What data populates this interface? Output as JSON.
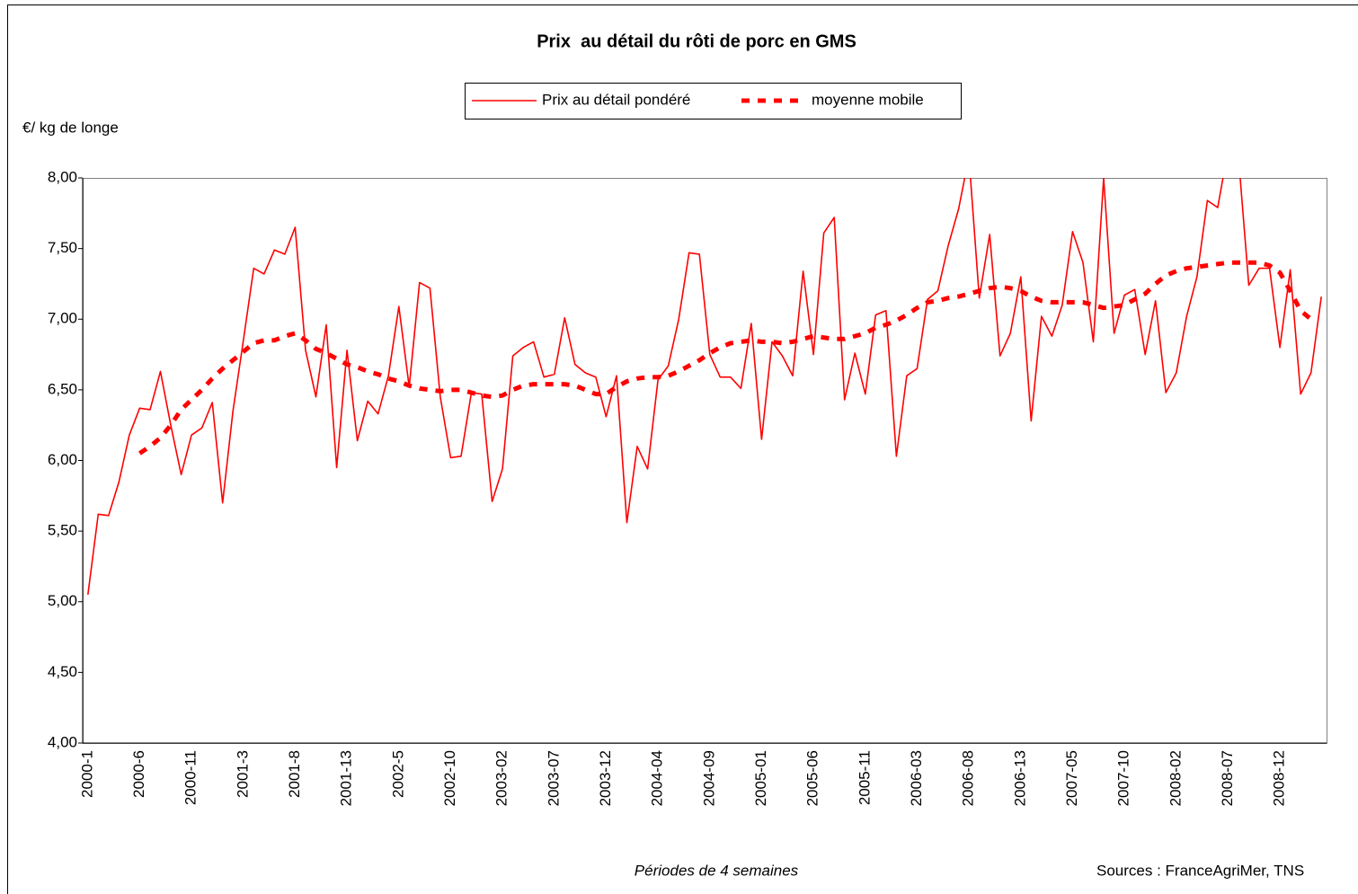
{
  "chart_data": {
    "type": "line",
    "title": "Prix  au détail du rôti de porc en GMS",
    "ylabel": "€/ kg de longe",
    "xlabel": "Périodes de 4 semaines",
    "source": "Sources : FranceAgriMer, TNS",
    "categories": [
      "2000-1",
      null,
      null,
      null,
      null,
      "2000-6",
      null,
      null,
      null,
      null,
      "2000-11",
      null,
      null,
      null,
      null,
      "2001-3",
      null,
      null,
      null,
      null,
      "2001-8",
      null,
      null,
      null,
      null,
      "2001-13",
      null,
      null,
      null,
      null,
      "2002-5",
      null,
      null,
      null,
      null,
      "2002-10",
      null,
      null,
      null,
      null,
      "2003-02",
      null,
      null,
      null,
      null,
      "2003-07",
      null,
      null,
      null,
      null,
      "2003-12",
      null,
      null,
      null,
      null,
      "2004-04",
      null,
      null,
      null,
      null,
      "2004-09",
      null,
      null,
      null,
      null,
      "2005-01",
      null,
      null,
      null,
      null,
      "2005-06",
      null,
      null,
      null,
      null,
      "2005-11",
      null,
      null,
      null,
      null,
      "2006-03",
      null,
      null,
      null,
      null,
      "2006-08",
      null,
      null,
      null,
      null,
      "2006-13",
      null,
      null,
      null,
      null,
      "2007-05",
      null,
      null,
      null,
      null,
      "2007-10",
      null,
      null,
      null,
      null,
      "2008-02",
      null,
      null,
      null,
      null,
      "2008-07",
      null,
      null,
      null,
      null,
      "2008-12",
      null,
      null,
      null,
      null
    ],
    "series": [
      {
        "name": "Prix au détail pondéré",
        "color": "#ff0000",
        "style": "solid",
        "values": [
          5.05,
          5.62,
          5.61,
          5.85,
          6.18,
          6.37,
          6.36,
          6.63,
          6.25,
          5.9,
          6.18,
          6.23,
          6.41,
          5.7,
          6.35,
          6.85,
          7.36,
          7.32,
          7.49,
          7.46,
          7.65,
          6.78,
          6.45,
          6.96,
          5.95,
          6.78,
          6.14,
          6.42,
          6.33,
          6.6,
          7.09,
          6.52,
          7.26,
          7.22,
          6.45,
          6.02,
          6.03,
          6.48,
          6.47,
          5.71,
          5.94,
          6.74,
          6.8,
          6.84,
          6.59,
          6.61,
          7.01,
          6.68,
          6.62,
          6.59,
          6.31,
          6.6,
          5.56,
          6.1,
          5.94,
          6.57,
          6.67,
          7.0,
          7.47,
          7.46,
          6.75,
          6.59,
          6.59,
          6.51,
          6.97,
          6.15,
          6.84,
          6.74,
          6.6,
          7.34,
          6.75,
          7.61,
          7.72,
          6.43,
          6.76,
          6.47,
          7.03,
          7.06,
          6.03,
          6.6,
          6.65,
          7.14,
          7.2,
          7.52,
          7.78,
          8.15,
          7.15,
          7.6,
          6.74,
          6.9,
          7.3,
          6.28,
          7.02,
          6.88,
          7.1,
          7.62,
          7.4,
          6.84,
          8.0,
          6.9,
          7.17,
          7.21,
          6.75,
          7.13,
          6.48,
          6.62,
          7.02,
          7.3,
          7.84,
          7.79,
          8.2,
          8.15,
          7.24,
          7.36,
          7.36,
          6.8,
          7.35,
          6.47,
          6.62,
          7.16
        ]
      },
      {
        "name": "moyenne mobile",
        "color": "#ff0000",
        "style": "dashed",
        "values": [
          null,
          null,
          null,
          null,
          null,
          6.05,
          6.1,
          6.16,
          6.25,
          6.36,
          6.43,
          6.5,
          6.58,
          6.65,
          6.71,
          6.77,
          6.83,
          6.85,
          6.85,
          6.88,
          6.9,
          6.85,
          6.79,
          6.76,
          6.72,
          6.68,
          6.66,
          6.63,
          6.61,
          6.58,
          6.56,
          6.53,
          6.51,
          6.5,
          6.49,
          6.5,
          6.5,
          6.48,
          6.46,
          6.45,
          6.46,
          6.5,
          6.53,
          6.54,
          6.54,
          6.54,
          6.54,
          6.53,
          6.5,
          6.47,
          6.47,
          6.52,
          6.56,
          6.58,
          6.59,
          6.59,
          6.6,
          6.63,
          6.67,
          6.71,
          6.76,
          6.8,
          6.83,
          6.84,
          6.85,
          6.84,
          6.84,
          6.83,
          6.84,
          6.86,
          6.88,
          6.87,
          6.86,
          6.86,
          6.88,
          6.9,
          6.94,
          6.96,
          6.99,
          7.03,
          7.08,
          7.12,
          7.13,
          7.15,
          7.16,
          7.18,
          7.2,
          7.22,
          7.23,
          7.22,
          7.2,
          7.16,
          7.13,
          7.12,
          7.12,
          7.12,
          7.12,
          7.1,
          7.08,
          7.09,
          7.1,
          7.14,
          7.18,
          7.25,
          7.31,
          7.34,
          7.36,
          7.37,
          7.38,
          7.39,
          7.4,
          7.4,
          7.4,
          7.4,
          7.38,
          7.33,
          7.2,
          7.06,
          7.0,
          null
        ]
      }
    ],
    "ylim": [
      4,
      8
    ],
    "yticks": [
      {
        "value": 4,
        "label": "4,00"
      },
      {
        "value": 4.5,
        "label": "4,50"
      },
      {
        "value": 5,
        "label": "5,00"
      },
      {
        "value": 5.5,
        "label": "5,50"
      },
      {
        "value": 6,
        "label": "6,00"
      },
      {
        "value": 6.5,
        "label": "6,50"
      },
      {
        "value": 7,
        "label": "7,00"
      },
      {
        "value": 7.5,
        "label": "7,50"
      },
      {
        "value": 8,
        "label": "8,00"
      }
    ],
    "grid": false
  }
}
